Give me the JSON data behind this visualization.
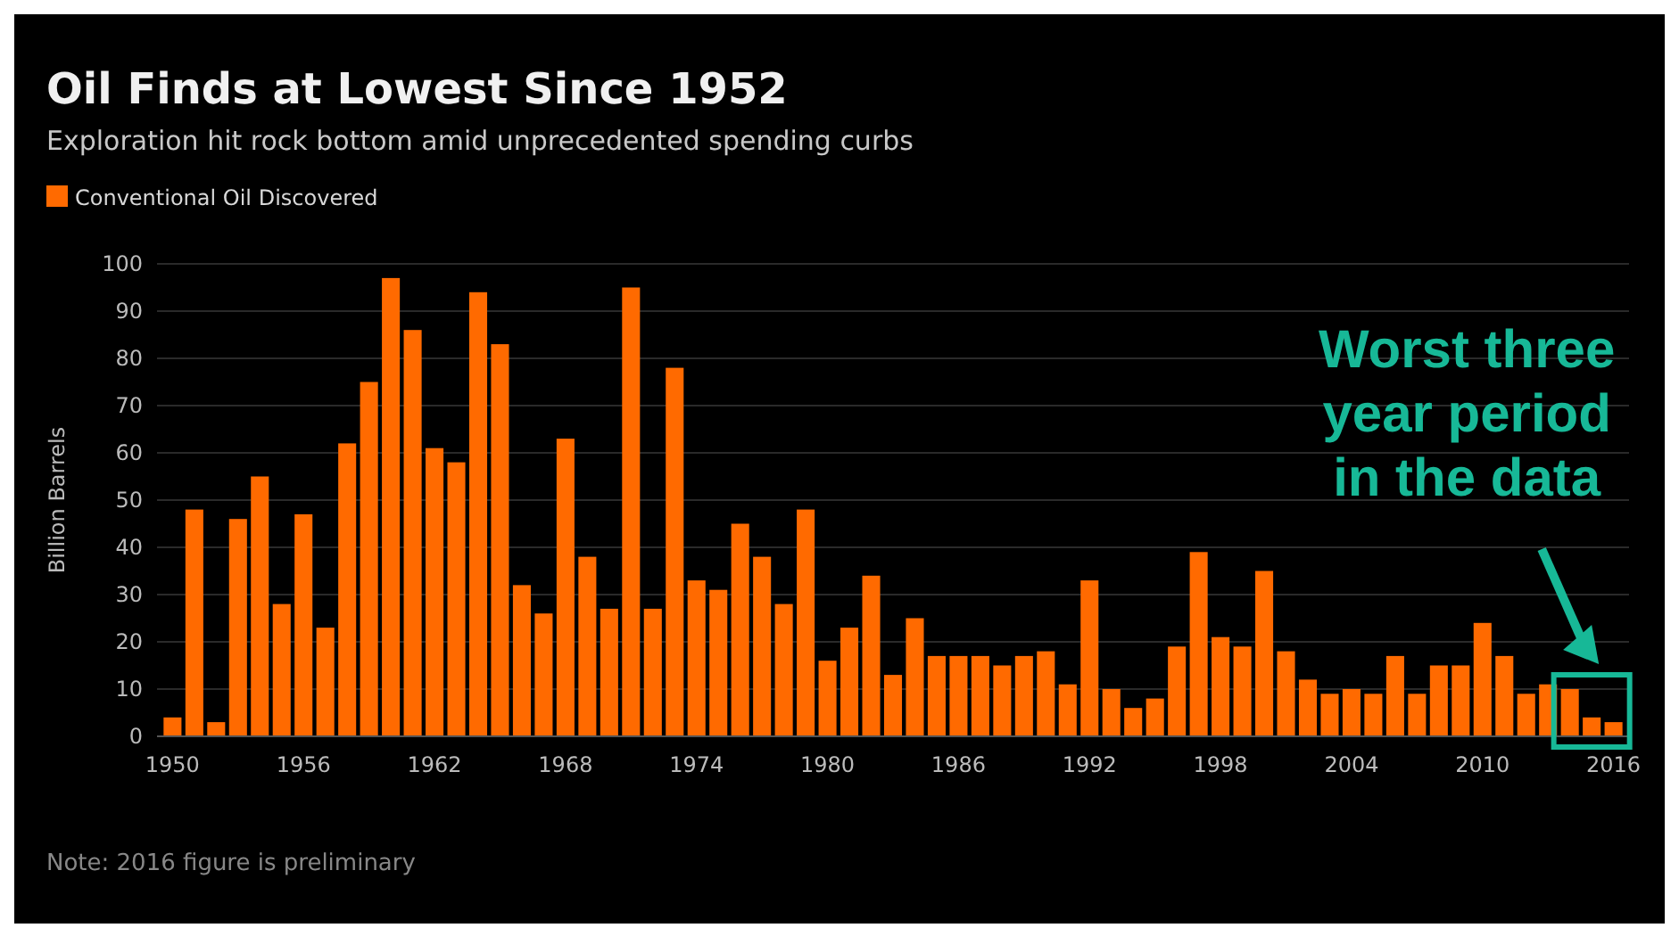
{
  "chart_data": {
    "type": "bar",
    "title": "Oil Finds at Lowest Since 1952",
    "subtitle": "Exploration hit rock bottom amid unprecedented spending curbs",
    "ylabel": "Billion Barrels",
    "categories": [
      "1950",
      null,
      null,
      null,
      null,
      null,
      "1956",
      null,
      null,
      null,
      null,
      null,
      "1962",
      null,
      null,
      null,
      null,
      null,
      "1968",
      null,
      null,
      null,
      null,
      null,
      "1974",
      null,
      null,
      null,
      null,
      null,
      "1980",
      null,
      null,
      null,
      null,
      null,
      "1986",
      null,
      null,
      null,
      null,
      null,
      "1992",
      null,
      null,
      null,
      null,
      null,
      "1998",
      null,
      null,
      null,
      null,
      null,
      "2004",
      null,
      null,
      null,
      null,
      null,
      "2010",
      null,
      null,
      null,
      null,
      null,
      "2016"
    ],
    "series": [
      {
        "name": "Conventional Oil Discovered",
        "color": "#ff6a00",
        "values": [
          4,
          48,
          3,
          46,
          55,
          28,
          47,
          23,
          62,
          75,
          97,
          86,
          61,
          58,
          94,
          83,
          32,
          26,
          63,
          38,
          27,
          95,
          27,
          78,
          33,
          31,
          45,
          38,
          28,
          48,
          16,
          23,
          34,
          13,
          25,
          17,
          17,
          17,
          15,
          17,
          18,
          11,
          33,
          10,
          6,
          8,
          19,
          39,
          21,
          19,
          35,
          18,
          12,
          9,
          10,
          9,
          17,
          9,
          15,
          15,
          24,
          17,
          9,
          11,
          10,
          4,
          3
        ]
      }
    ],
    "ylim": [
      0,
      100
    ],
    "yticks": [
      0,
      10,
      20,
      30,
      40,
      50,
      60,
      70,
      80,
      90,
      100
    ],
    "grid": "y",
    "legend": "top left",
    "annotations": [
      "Worst three year period in the data",
      "Note: 2016 figure is preliminary"
    ]
  }
}
